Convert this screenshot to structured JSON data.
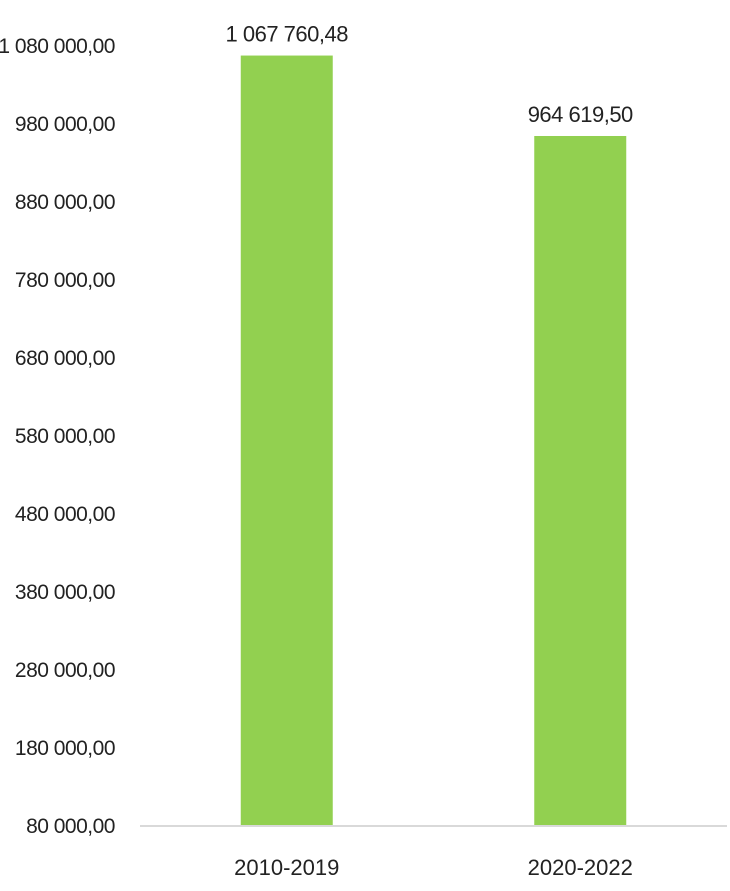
{
  "chart_data": {
    "type": "bar",
    "title": "",
    "xlabel": "",
    "ylabel": "",
    "categories": [
      "2010-2019",
      "2020-2022"
    ],
    "values": [
      1067760.48,
      964619.5
    ],
    "value_labels": [
      "1 067 760,48",
      "964 619,50"
    ],
    "ylim": [
      80000,
      1080000
    ],
    "yticks": [
      80000,
      180000,
      280000,
      380000,
      480000,
      580000,
      680000,
      780000,
      880000,
      980000,
      1080000
    ],
    "ytick_labels": [
      "80 000,00",
      "180 000,00",
      "280 000,00",
      "380 000,00",
      "480 000,00",
      "580 000,00",
      "680 000,00",
      "780 000,00",
      "880 000,00",
      "980 000,00",
      "1 080 000,00"
    ],
    "grid": false,
    "legend": "none",
    "bar_color": "#92d050",
    "axis_color": "#d9d9d9"
  }
}
